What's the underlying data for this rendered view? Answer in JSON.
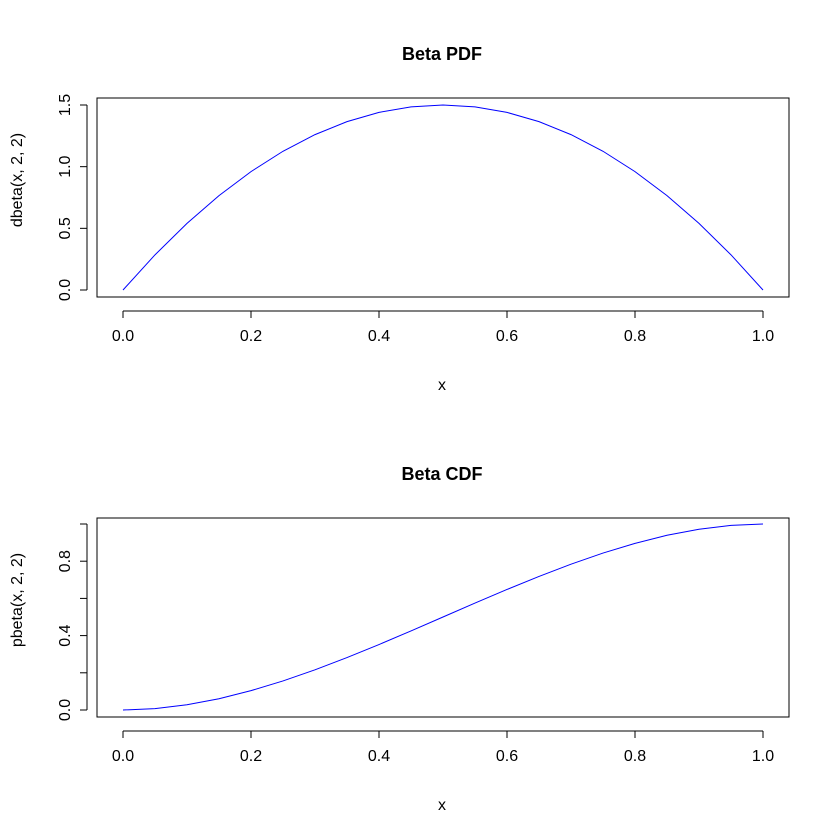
{
  "chart_data": [
    {
      "type": "line",
      "title": "Beta PDF",
      "xlabel": "x",
      "ylabel": "dbeta(x, 2, 2)",
      "xlim": [
        0,
        1
      ],
      "ylim": [
        0,
        1.5
      ],
      "x_ticks": [
        0.0,
        0.2,
        0.4,
        0.6,
        0.8,
        1.0
      ],
      "x_tick_labels": [
        "0.0",
        "0.2",
        "0.4",
        "0.6",
        "0.8",
        "1.0"
      ],
      "y_ticks": [
        0.0,
        0.5,
        1.0,
        1.5
      ],
      "y_tick_labels": [
        "0.0",
        "0.5",
        "1.0",
        "1.5"
      ],
      "grid": false,
      "color": "#0000ff",
      "series": [
        {
          "x": [
            0.0,
            0.05,
            0.1,
            0.15,
            0.2,
            0.25,
            0.3,
            0.35,
            0.4,
            0.45,
            0.5,
            0.55,
            0.6,
            0.65,
            0.7,
            0.75,
            0.8,
            0.85,
            0.9,
            0.95,
            1.0
          ],
          "y": [
            0.0,
            0.285,
            0.54,
            0.765,
            0.96,
            1.125,
            1.26,
            1.365,
            1.44,
            1.485,
            1.5,
            1.485,
            1.44,
            1.365,
            1.26,
            1.125,
            0.96,
            0.765,
            0.54,
            0.285,
            0.0
          ]
        }
      ]
    },
    {
      "type": "line",
      "title": "Beta CDF",
      "xlabel": "x",
      "ylabel": "pbeta(x, 2, 2)",
      "xlim": [
        0,
        1
      ],
      "ylim": [
        0,
        1
      ],
      "x_ticks": [
        0.0,
        0.2,
        0.4,
        0.6,
        0.8,
        1.0
      ],
      "x_tick_labels": [
        "0.0",
        "0.2",
        "0.4",
        "0.6",
        "0.8",
        "1.0"
      ],
      "y_ticks": [
        0.0,
        0.2,
        0.4,
        0.6,
        0.8,
        1.0
      ],
      "y_tick_labels": [
        "0.0",
        "",
        "0.4",
        "",
        "0.8",
        ""
      ],
      "grid": false,
      "color": "#0000ff",
      "series": [
        {
          "x": [
            0.0,
            0.05,
            0.1,
            0.15,
            0.2,
            0.25,
            0.3,
            0.35,
            0.4,
            0.45,
            0.5,
            0.55,
            0.6,
            0.65,
            0.7,
            0.75,
            0.8,
            0.85,
            0.9,
            0.95,
            1.0
          ],
          "y": [
            0.0,
            0.00725,
            0.028,
            0.06075,
            0.104,
            0.15625,
            0.216,
            0.28175,
            0.352,
            0.42525,
            0.5,
            0.57475,
            0.648,
            0.71825,
            0.784,
            0.84375,
            0.896,
            0.93925,
            0.972,
            0.99275,
            1.0
          ]
        }
      ]
    }
  ]
}
